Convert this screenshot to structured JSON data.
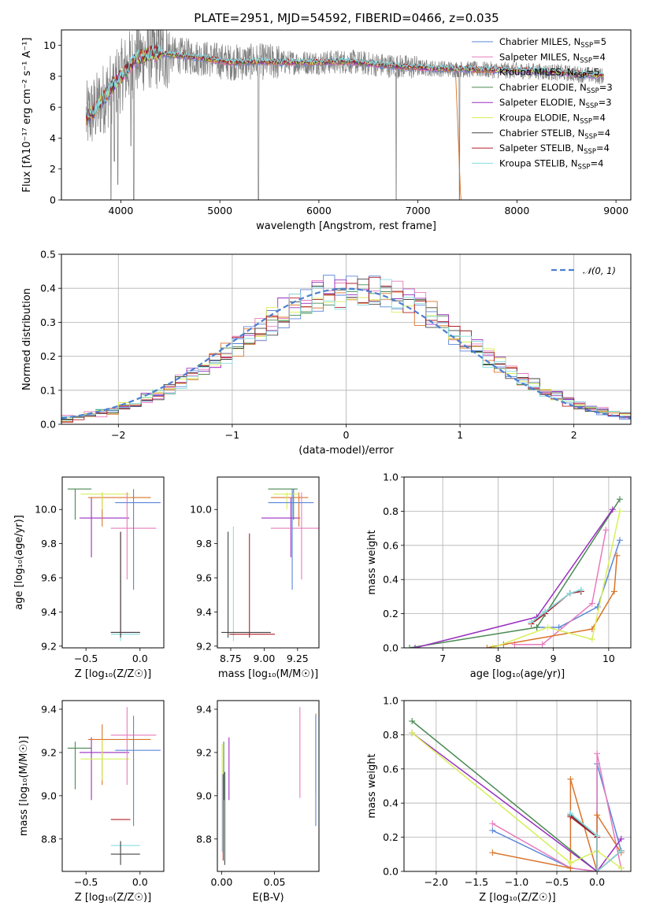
{
  "figure": {
    "title": "PLATE=2951, MJD=54592, FIBERID=0466, z=0.035"
  },
  "colors": {
    "cm": "#5b86d8",
    "sm": "#e87bbd",
    "km": "#d9742a",
    "ce": "#4a8a52",
    "se": "#9a2fbf",
    "ke": "#d7ef5a",
    "cs": "#444444",
    "ss": "#b0202a",
    "ks": "#86dde1",
    "grid": "#b0b0b0",
    "gauss": "#4d7fd1"
  },
  "legend_spectrum": [
    {
      "key": "cm",
      "text": "Chabrier MILES, N",
      "sub": "SSP",
      "val": "=5"
    },
    {
      "key": "sm",
      "text": "Salpeter MILES, N",
      "sub": "SSP",
      "val": "=4"
    },
    {
      "key": "km",
      "text": "Kroupa MILES, N",
      "sub": "SSP",
      "val": "=5"
    },
    {
      "key": "ce",
      "text": "Chabrier ELODIE, N",
      "sub": "SSP",
      "val": "=3"
    },
    {
      "key": "se",
      "text": "Salpeter ELODIE, N",
      "sub": "SSP",
      "val": "=3"
    },
    {
      "key": "ke",
      "text": "Kroupa ELODIE, N",
      "sub": "SSP",
      "val": "=4"
    },
    {
      "key": "cs",
      "text": "Chabrier STELIB, N",
      "sub": "SSP",
      "val": "=4"
    },
    {
      "key": "ss",
      "text": "Salpeter STELIB, N",
      "sub": "SSP",
      "val": "=4"
    },
    {
      "key": "ks",
      "text": "Kroupa STELIB, N",
      "sub": "SSP",
      "val": "=4"
    }
  ],
  "legend_hist": "𝒩(0, 1)",
  "chart_data": [
    {
      "id": "spectrum",
      "type": "line",
      "xlabel": "wavelength [Angstrom, rest frame]",
      "ylabel": "Flux [f",
      "ylabel_full": "Flux [fλ10⁻¹⁷ erg cm⁻² s⁻¹ A⁻¹]",
      "xlim": [
        3400,
        9150
      ],
      "ylim": [
        0,
        11
      ],
      "xticks": [
        4000,
        5000,
        6000,
        7000,
        8000,
        9000
      ],
      "yticks": [
        0,
        2,
        4,
        6,
        8,
        10
      ],
      "grid": false,
      "legend": "upper-right",
      "continuum_x": [
        3650,
        3750,
        3850,
        3950,
        4050,
        4150,
        4300,
        4500,
        4800,
        5100,
        5400,
        5700,
        6000,
        6300,
        6600,
        6900,
        7200,
        7500,
        7800,
        8100,
        8400,
        8700,
        8880
      ],
      "continuum_y": [
        5.3,
        5.9,
        6.8,
        7.6,
        8.4,
        9.1,
        9.5,
        9.4,
        9.2,
        8.9,
        8.95,
        8.9,
        8.9,
        8.95,
        8.75,
        8.6,
        8.5,
        8.45,
        8.4,
        8.35,
        8.25,
        8.1,
        8.0
      ],
      "dips": [
        {
          "x": 3900,
          "y": 0.0
        },
        {
          "x": 3935,
          "y": 2.5
        },
        {
          "x": 3970,
          "y": 1.0
        },
        {
          "x": 4102,
          "y": 3.5
        },
        {
          "x": 4130,
          "y": 0.0
        },
        {
          "x": 5390,
          "y": 0.0
        },
        {
          "x": 6780,
          "y": 0.0
        },
        {
          "x": 7420,
          "y": 0.0
        }
      ]
    },
    {
      "id": "residuals",
      "type": "step",
      "xlabel": "(data-model)/error",
      "ylabel": "Normed distribution",
      "xlim": [
        -2.5,
        2.5
      ],
      "ylim": [
        0,
        0.5
      ],
      "xticks": [
        -2,
        -1,
        0,
        1,
        2
      ],
      "yticks": [
        0.0,
        0.1,
        0.2,
        0.3,
        0.4,
        0.5
      ],
      "grid": true,
      "legend": "upper-right",
      "bin_width": 0.1,
      "gaussian": {
        "mean": 0,
        "sigma": 1
      }
    },
    {
      "id": "age_Z",
      "type": "errorbar",
      "xlabel": "Z [log₁₀(Z/Z☉)]",
      "ylabel": "age  [log₁₀(age/yr)]",
      "xlim": [
        -0.72,
        0.22
      ],
      "ylim": [
        9.19,
        10.19
      ],
      "xticks": [
        -0.5,
        0.0
      ],
      "xticklabels": [
        "−0.5",
        "0.0"
      ],
      "yticks": [
        9.2,
        9.4,
        9.6,
        9.8,
        10.0
      ],
      "points": [
        {
          "key": "ce",
          "x": -0.6,
          "xlo": -0.67,
          "xhi": -0.45,
          "y": 10.12,
          "ylo": 9.94,
          "yhi": 10.12
        },
        {
          "key": "se",
          "x": -0.45,
          "xlo": -0.56,
          "xhi": -0.1,
          "y": 9.95,
          "ylo": 9.72,
          "yhi": 10.07
        },
        {
          "key": "km",
          "x": -0.35,
          "xlo": -0.48,
          "xhi": 0.1,
          "y": 10.07,
          "ylo": 9.9,
          "yhi": 10.1
        },
        {
          "key": "ke",
          "x": -0.35,
          "xlo": -0.55,
          "xhi": -0.1,
          "y": 10.09,
          "ylo": 10.0,
          "yhi": 10.1
        },
        {
          "key": "sm",
          "x": -0.12,
          "xlo": -0.27,
          "xhi": 0.15,
          "y": 9.89,
          "ylo": 9.59,
          "yhi": 10.1
        },
        {
          "key": "cm",
          "x": -0.06,
          "xlo": -0.23,
          "xhi": 0.19,
          "y": 10.04,
          "ylo": 9.53,
          "yhi": 10.12
        },
        {
          "key": "ks",
          "x": -0.18,
          "xlo": -0.27,
          "xhi": 0.0,
          "y": 9.27,
          "ylo": 9.23,
          "yhi": 9.85
        },
        {
          "key": "ss",
          "x": -0.18,
          "xlo": -0.27,
          "xhi": 0.0,
          "y": 9.28,
          "ylo": 9.26,
          "yhi": 9.87
        },
        {
          "key": "cs",
          "x": -0.18,
          "xlo": -0.27,
          "xhi": 0.0,
          "y": 9.28,
          "ylo": 9.25,
          "yhi": 9.87
        }
      ]
    },
    {
      "id": "age_mass",
      "type": "errorbar",
      "xlabel": "mass [log₁₀(M/M☉)]",
      "xlim": [
        8.65,
        9.41
      ],
      "ylim": [
        9.19,
        10.19
      ],
      "xticks": [
        8.75,
        9.0,
        9.25
      ],
      "xticklabels": [
        "8.75",
        "9.00",
        "9.25"
      ],
      "yticks": [
        9.2,
        9.4,
        9.6,
        9.8,
        10.0
      ],
      "points": [
        {
          "key": "ce",
          "x": 9.22,
          "xlo": 9.03,
          "xhi": 9.25,
          "y": 10.12,
          "ylo": 9.94,
          "yhi": 10.12
        },
        {
          "key": "se",
          "x": 9.2,
          "xlo": 8.98,
          "xhi": 9.27,
          "y": 9.95,
          "ylo": 9.72,
          "yhi": 10.07
        },
        {
          "key": "km",
          "x": 9.26,
          "xlo": 9.05,
          "xhi": 9.33,
          "y": 10.07,
          "ylo": 9.9,
          "yhi": 10.1
        },
        {
          "key": "ke",
          "x": 9.17,
          "xlo": 9.07,
          "xhi": 9.26,
          "y": 10.09,
          "ylo": 10.0,
          "yhi": 10.1
        },
        {
          "key": "sm",
          "x": 9.28,
          "xlo": 9.05,
          "xhi": 9.41,
          "y": 9.89,
          "ylo": 9.59,
          "yhi": 10.1
        },
        {
          "key": "cm",
          "x": 9.21,
          "xlo": 9.03,
          "xhi": 9.37,
          "y": 10.04,
          "ylo": 9.53,
          "yhi": 10.12
        },
        {
          "key": "ks",
          "x": 8.77,
          "xlo": 8.74,
          "xhi": 8.79,
          "y": 9.27,
          "ylo": 9.23,
          "yhi": 9.9
        },
        {
          "key": "ss",
          "x": 8.89,
          "xlo": 8.74,
          "xhi": 9.08,
          "y": 9.27,
          "ylo": 9.25,
          "yhi": 9.86
        },
        {
          "key": "cs",
          "x": 8.73,
          "xlo": 8.68,
          "xhi": 9.05,
          "y": 9.28,
          "ylo": 9.25,
          "yhi": 9.87
        }
      ]
    },
    {
      "id": "mw_age",
      "type": "line",
      "xlabel": "age  [log₁₀(age/yr)]",
      "ylabel": "mass weight",
      "xlim": [
        6.3,
        10.4
      ],
      "ylim": [
        0,
        1
      ],
      "xticks": [
        7,
        8,
        9,
        10
      ],
      "yticks": [
        0.0,
        0.2,
        0.4,
        0.6,
        0.8,
        1.0
      ],
      "grid": true,
      "series": [
        {
          "key": "cm",
          "x": [
            8.7,
            9.1,
            9.8,
            10.2
          ],
          "y": [
            0.12,
            0.12,
            0.24,
            0.63
          ]
        },
        {
          "key": "sm",
          "x": [
            8.3,
            8.8,
            9.7,
            9.95
          ],
          "y": [
            0.02,
            0.02,
            0.26,
            0.69
          ]
        },
        {
          "key": "km",
          "x": [
            7.8,
            8.1,
            9.7,
            10.1,
            10.15
          ],
          "y": [
            0.0,
            0.02,
            0.11,
            0.33,
            0.54
          ]
        },
        {
          "key": "ce",
          "x": [
            6.4,
            8.7,
            10.2
          ],
          "y": [
            0.0,
            0.12,
            0.87
          ]
        },
        {
          "key": "se",
          "x": [
            6.5,
            8.7,
            10.07
          ],
          "y": [
            0.0,
            0.18,
            0.81
          ]
        },
        {
          "key": "ke",
          "x": [
            7.9,
            8.9,
            9.7,
            10.2
          ],
          "y": [
            0.0,
            0.12,
            0.05,
            0.8
          ]
        },
        {
          "key": "cs",
          "x": [
            8.6,
            8.85,
            9.3,
            9.5
          ],
          "y": [
            0.15,
            0.21,
            0.32,
            0.33
          ]
        },
        {
          "key": "ss",
          "x": [
            8.6,
            8.85,
            9.3,
            9.5
          ],
          "y": [
            0.14,
            0.2,
            0.32,
            0.33
          ]
        },
        {
          "key": "ks",
          "x": [
            8.6,
            8.85,
            9.3,
            9.5
          ],
          "y": [
            0.15,
            0.21,
            0.32,
            0.34
          ]
        }
      ]
    },
    {
      "id": "mass_Z",
      "type": "errorbar",
      "xlabel": "Z [log₁₀(Z/Z☉)]",
      "ylabel": "mass [log₁₀(M/M☉)]",
      "xlim": [
        -0.72,
        0.22
      ],
      "ylim": [
        8.65,
        9.44
      ],
      "xticks": [
        -0.5,
        0.0
      ],
      "xticklabels": [
        "−0.5",
        "0.0"
      ],
      "yticks": [
        8.8,
        9.0,
        9.2,
        9.4
      ],
      "points": [
        {
          "key": "ce",
          "x": -0.6,
          "xlo": -0.67,
          "xhi": -0.45,
          "y": 9.22,
          "ylo": 9.03,
          "yhi": 9.25
        },
        {
          "key": "se",
          "x": -0.45,
          "xlo": -0.56,
          "xhi": -0.1,
          "y": 9.2,
          "ylo": 8.98,
          "yhi": 9.27
        },
        {
          "key": "km",
          "x": -0.35,
          "xlo": -0.48,
          "xhi": 0.1,
          "y": 9.26,
          "ylo": 9.05,
          "yhi": 9.33
        },
        {
          "key": "ke",
          "x": -0.35,
          "xlo": -0.55,
          "xhi": -0.1,
          "y": 9.17,
          "ylo": 9.07,
          "yhi": 9.26
        },
        {
          "key": "sm",
          "x": -0.12,
          "xlo": -0.27,
          "xhi": 0.15,
          "y": 9.28,
          "ylo": 9.05,
          "yhi": 9.41
        },
        {
          "key": "cm",
          "x": -0.06,
          "xlo": -0.23,
          "xhi": 0.19,
          "y": 9.21,
          "ylo": 8.86,
          "yhi": 9.37
        },
        {
          "key": "ks",
          "x": -0.18,
          "xlo": -0.27,
          "xhi": 0.0,
          "y": 8.77,
          "ylo": 8.74,
          "yhi": 8.79
        },
        {
          "key": "ss",
          "x": -0.18,
          "xlo": -0.27,
          "xhi": -0.09,
          "y": 8.89,
          "ylo": 8.89,
          "yhi": 8.89
        },
        {
          "key": "cs",
          "x": -0.18,
          "xlo": -0.27,
          "xhi": 0.0,
          "y": 8.73,
          "ylo": 8.68,
          "yhi": 8.79
        }
      ]
    },
    {
      "id": "mass_ebv",
      "type": "errorbar",
      "xlabel": "E(B-V)",
      "xlim": [
        -0.004,
        0.092
      ],
      "ylim": [
        8.65,
        9.44
      ],
      "xticks": [
        0.0,
        0.05
      ],
      "xticklabels": [
        "0.00",
        "0.05"
      ],
      "yticks": [
        8.8,
        9.0,
        9.2,
        9.4
      ],
      "points": [
        {
          "key": "ce",
          "x": 0.002,
          "y": 9.15,
          "ylo": 8.98,
          "yhi": 9.25
        },
        {
          "key": "se",
          "x": 0.007,
          "y": 9.2,
          "ylo": 8.98,
          "yhi": 9.27
        },
        {
          "key": "km",
          "x": 0.089,
          "y": 9.26,
          "ylo": 9.01,
          "yhi": 9.38
        },
        {
          "key": "ke",
          "x": 0.0005,
          "y": 9.17,
          "ylo": 9.07,
          "yhi": 9.24
        },
        {
          "key": "sm",
          "x": 0.074,
          "y": 9.28,
          "ylo": 8.99,
          "yhi": 9.41
        },
        {
          "key": "cm",
          "x": 0.089,
          "y": 9.21,
          "ylo": 8.86,
          "yhi": 9.37
        },
        {
          "key": "ks",
          "x": 0.0005,
          "y": 8.77,
          "ylo": 8.74,
          "yhi": 9.1
        },
        {
          "key": "ss",
          "x": 0.0015,
          "y": 8.89,
          "ylo": 8.7,
          "yhi": 9.1
        },
        {
          "key": "cs",
          "x": 0.003,
          "y": 8.9,
          "ylo": 8.68,
          "yhi": 9.11
        }
      ]
    },
    {
      "id": "mw_Z",
      "type": "line",
      "xlabel": "Z [log₁₀(Z/Z☉)]",
      "ylabel": "mass weight",
      "xlim": [
        -2.4,
        0.42
      ],
      "ylim": [
        0,
        1
      ],
      "xticks": [
        -2.0,
        -1.5,
        -1.0,
        -0.5,
        0.0
      ],
      "xticklabels": [
        "−2.0",
        "−1.5",
        "−1.0",
        "−0.5",
        "0.0"
      ],
      "yticks": [
        0.0,
        0.2,
        0.4,
        0.6,
        0.8,
        1.0
      ],
      "grid": true,
      "series": [
        {
          "key": "cm",
          "x": [
            -1.3,
            -0.33,
            0.0,
            0.0,
            0.3
          ],
          "y": [
            0.24,
            0.02,
            0.0,
            0.63,
            0.12
          ]
        },
        {
          "key": "sm",
          "x": [
            -1.3,
            -0.33,
            0.0,
            0.0,
            0.3
          ],
          "y": [
            0.28,
            0.02,
            0.0,
            0.69,
            0.02
          ]
        },
        {
          "key": "km",
          "x": [
            -1.3,
            -0.33,
            -0.33,
            0.0,
            0.0,
            0.3
          ],
          "y": [
            0.11,
            0.02,
            0.54,
            0.0,
            0.33,
            0.11
          ]
        },
        {
          "key": "ce",
          "x": [
            -2.3,
            0.0,
            0.3
          ],
          "y": [
            0.88,
            0.0,
            0.12
          ]
        },
        {
          "key": "se",
          "x": [
            -2.3,
            0.0,
            0.3
          ],
          "y": [
            0.81,
            0.0,
            0.19
          ]
        },
        {
          "key": "ke",
          "x": [
            -2.3,
            -0.33,
            0.0,
            0.3
          ],
          "y": [
            0.81,
            0.05,
            0.12,
            0.02
          ]
        },
        {
          "key": "cs",
          "x": [
            -0.33,
            0.0,
            0.0,
            0.3
          ],
          "y": [
            0.33,
            0.2,
            0.0,
            0.12
          ]
        },
        {
          "key": "ss",
          "x": [
            -0.33,
            0.0,
            0.0,
            0.3
          ],
          "y": [
            0.32,
            0.2,
            0.0,
            0.12
          ]
        },
        {
          "key": "ks",
          "x": [
            -0.33,
            0.0,
            0.0,
            0.3
          ],
          "y": [
            0.34,
            0.21,
            0.0,
            0.12
          ]
        }
      ]
    }
  ]
}
